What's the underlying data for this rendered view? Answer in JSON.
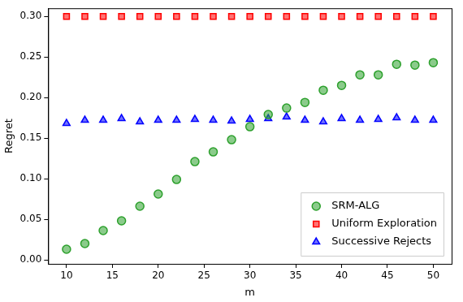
{
  "chart_data": {
    "type": "scatter",
    "x_label": "m",
    "y_label": "Regret",
    "x": [
      10,
      12,
      14,
      16,
      18,
      20,
      22,
      24,
      26,
      28,
      30,
      32,
      34,
      36,
      38,
      40,
      42,
      44,
      46,
      48,
      50
    ],
    "series": [
      {
        "name": "SRM-ALG",
        "color": "#2ca02c",
        "marker": "circle",
        "values": [
          0.013,
          0.02,
          0.036,
          0.048,
          0.066,
          0.081,
          0.099,
          0.121,
          0.133,
          0.148,
          0.164,
          0.179,
          0.187,
          0.194,
          0.209,
          0.215,
          0.228,
          0.228,
          0.241,
          0.24,
          0.243
        ]
      },
      {
        "name": "Uniform Exploration",
        "color": "#ff0000",
        "marker": "square",
        "values": [
          0.3,
          0.3,
          0.3,
          0.3,
          0.3,
          0.3,
          0.3,
          0.3,
          0.3,
          0.3,
          0.3,
          0.3,
          0.3,
          0.3,
          0.3,
          0.3,
          0.3,
          0.3,
          0.3,
          0.3,
          0.3
        ]
      },
      {
        "name": "Successive Rejects",
        "color": "#0000ff",
        "marker": "triangle",
        "values": [
          0.168,
          0.172,
          0.172,
          0.174,
          0.17,
          0.172,
          0.172,
          0.173,
          0.172,
          0.171,
          0.173,
          0.174,
          0.176,
          0.172,
          0.17,
          0.174,
          0.172,
          0.173,
          0.175,
          0.172,
          0.172
        ]
      }
    ],
    "xlim": [
      8,
      52
    ],
    "xticks": [
      10,
      15,
      20,
      25,
      30,
      35,
      40,
      45,
      50
    ],
    "ylim": [
      -0.005,
      0.31
    ],
    "yticks": [
      {
        "value": 0,
        "label": "0.00"
      },
      {
        "value": 0.05,
        "label": "0.05"
      },
      {
        "value": 0.1,
        "label": "0.10"
      },
      {
        "value": 0.15,
        "label": "0.15"
      },
      {
        "value": 0.2,
        "label": "0.20"
      },
      {
        "value": 0.25,
        "label": "0.25"
      },
      {
        "value": 0.3,
        "label": "0.30"
      }
    ],
    "grid": false,
    "legend": "lower right"
  }
}
